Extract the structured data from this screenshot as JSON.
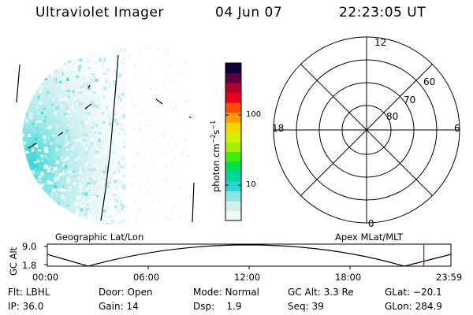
{
  "header": {
    "title": "Ultraviolet Imager",
    "date": "04 Jun 07",
    "time": "22:23:05 UT"
  },
  "colorbar": {
    "units_main": "photon cm",
    "units_exp1": "−2",
    "units_mid": "s",
    "units_exp2": "−1",
    "ticks": [
      {
        "label": "100",
        "value": 100
      },
      {
        "label": "10",
        "value": 10
      }
    ],
    "colors": [
      "#f0f8f8",
      "#cfeeee",
      "#8ee3e3",
      "#2ed3d3",
      "#00d6a0",
      "#00dd50",
      "#3cf000",
      "#a0f000",
      "#d8f000",
      "#f8d400",
      "#ff9a00",
      "#ff4d00",
      "#e8001a",
      "#b00030",
      "#5a0040",
      "#10003a"
    ]
  },
  "polar": {
    "mlt_labels": [
      "12",
      "18",
      "6",
      "0"
    ],
    "lat_labels": [
      "60",
      "70",
      "80"
    ]
  },
  "timeline": {
    "ylabel": "GC Alt",
    "ytick_top": "9.0",
    "ytick_bottom": "1.8",
    "left_title": "Geographic Lat/Lon",
    "right_title": "Apex MLat/MLT",
    "xticks": [
      "00:00",
      "06:00",
      "12:00",
      "18:00",
      "23:59"
    ],
    "current_time_fraction": 0.933
  },
  "footer": {
    "flt": "Flt: LBHL",
    "ip": "IP: 36.0",
    "door": "Door: Open",
    "gain": "Gain: 14",
    "mode": "Mode: Normal",
    "dsp": "Dsp:    1.9",
    "gcalt": "GC Alt: 3.3 Re",
    "seq": "Seq: 39",
    "glat": "GLat: −20.1",
    "glon": "GLon: 284.9"
  }
}
